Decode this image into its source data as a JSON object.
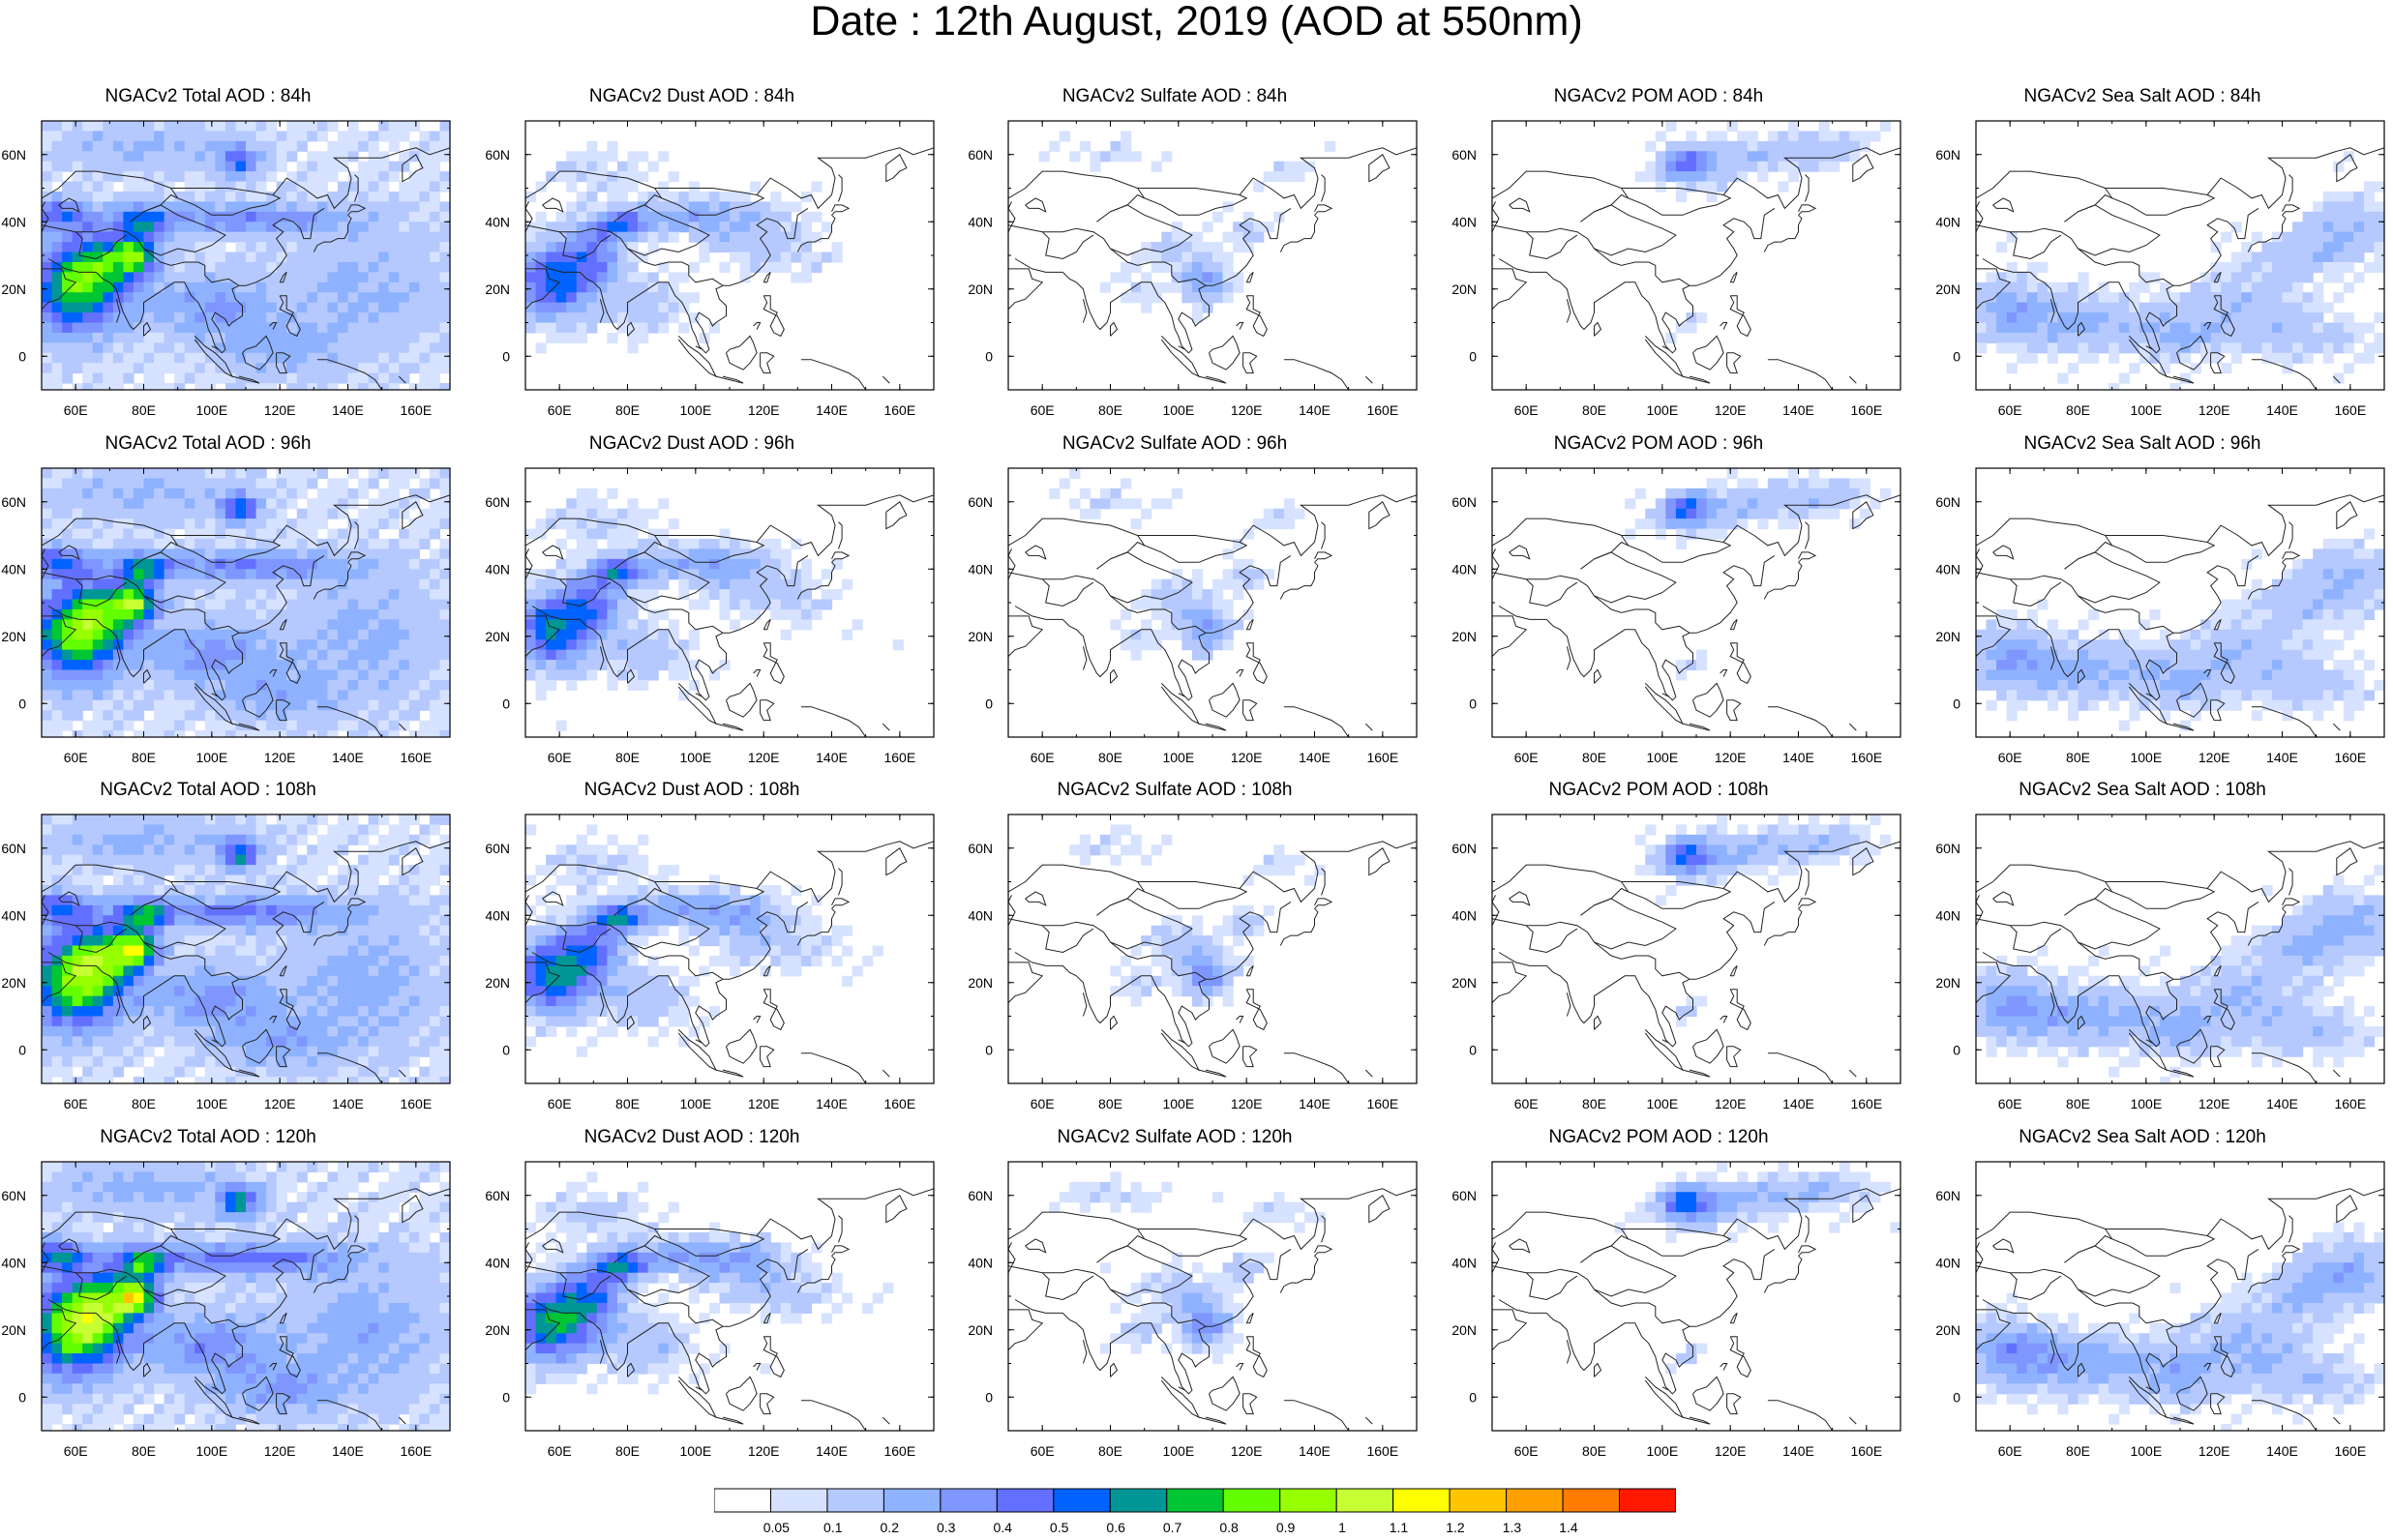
{
  "title": "Date : 12th August, 2019 (AOD at 550nm)",
  "axis_ticks": {
    "lon_labels": [
      "60E",
      "80E",
      "100E",
      "120E",
      "140E",
      "160E"
    ],
    "lat_labels": [
      "60N",
      "40N",
      "20N",
      "0"
    ]
  },
  "rows": [
    {
      "lead": "84h",
      "titles": [
        "NGACv2 Total AOD : 84h",
        "NGACv2 Dust AOD : 84h",
        "NGACv2 Sulfate AOD : 84h",
        "NGACv2 POM AOD : 84h",
        "NGACv2 Sea Salt AOD : 84h"
      ]
    },
    {
      "lead": "96h",
      "titles": [
        "NGACv2 Total AOD : 96h",
        "NGACv2 Dust AOD : 96h",
        "NGACv2 Sulfate AOD : 96h",
        "NGACv2 POM AOD : 96h",
        "NGACv2 Sea Salt AOD : 96h"
      ]
    },
    {
      "lead": "108h",
      "titles": [
        "NGACv2 Total AOD : 108h",
        "NGACv2 Dust AOD : 108h",
        "NGACv2 Sulfate AOD : 108h",
        "NGACv2 POM AOD : 108h",
        "NGACv2 Sea Salt AOD : 108h"
      ]
    },
    {
      "lead": "120h",
      "titles": [
        "NGACv2 Total AOD : 120h",
        "NGACv2 Dust AOD : 120h",
        "NGACv2 Sulfate AOD : 120h",
        "NGACv2 POM AOD : 120h",
        "NGACv2 Sea Salt  AOD : 120h"
      ]
    }
  ],
  "colorbar": {
    "labels": [
      "0.05",
      "0.1",
      "0.2",
      "0.3",
      "0.4",
      "0.5",
      "0.6",
      "0.7",
      "0.8",
      "0.9",
      "1",
      "1.1",
      "1.2",
      "1.3",
      "1.4"
    ],
    "colors": [
      "#ffffff",
      "#d6e2ff",
      "#b5c9ff",
      "#8eb2ff",
      "#7f96ff",
      "#6370ff",
      "#0063ff",
      "#009696",
      "#00c633",
      "#63ff00",
      "#96ff00",
      "#c6ff33",
      "#ffff00",
      "#ffc600",
      "#ffa000",
      "#ff7c00",
      "#ff1900"
    ]
  },
  "colors": {
    "coast": "#222222",
    "frame": "#000000"
  }
}
